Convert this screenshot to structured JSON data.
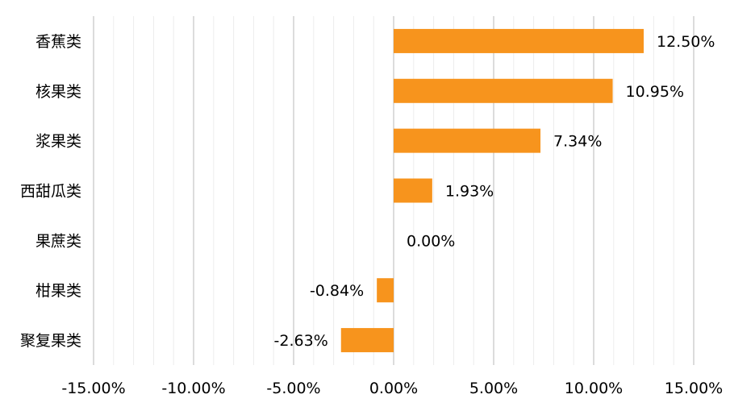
{
  "chart_data": {
    "type": "bar",
    "orientation": "horizontal",
    "categories": [
      "香蕉类",
      "核果类",
      "浆果类",
      "西甜瓜类",
      "果蔗类",
      "柑果类",
      "聚复果类"
    ],
    "values": [
      12.5,
      10.95,
      7.34,
      1.93,
      0.0,
      -0.84,
      -2.63
    ],
    "data_labels": [
      "12.50%",
      "10.95%",
      "7.34%",
      "1.93%",
      "0.00%",
      "-0.84%",
      "-2.63%"
    ],
    "xlim": [
      -15,
      15
    ],
    "x_ticks": [
      -15,
      -10,
      -5,
      0,
      5,
      10,
      15
    ],
    "x_tick_labels": [
      "-15.00%",
      "-10.00%",
      "-5.00%",
      "0.00%",
      "5.00%",
      "10.00%",
      "15.00%"
    ],
    "grid": true,
    "bar_color": "#F7941D",
    "title": "",
    "xlabel": "",
    "ylabel": ""
  }
}
